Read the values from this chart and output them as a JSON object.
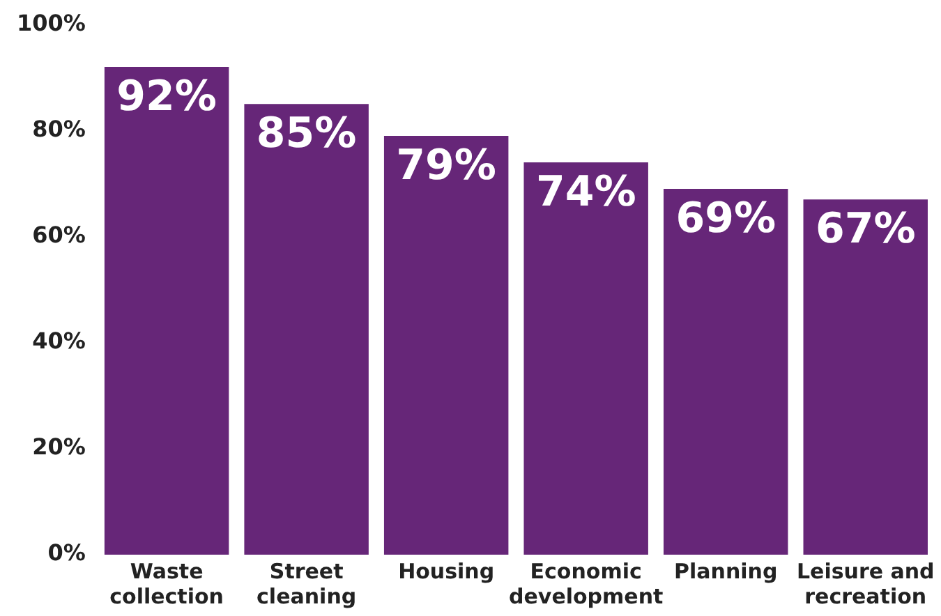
{
  "chart_data": {
    "type": "bar",
    "categories": [
      "Waste collection",
      "Street cleaning",
      "Housing",
      "Economic development",
      "Planning",
      "Leisure and recreation"
    ],
    "values": [
      92,
      85,
      79,
      74,
      69,
      67
    ],
    "color": "#662678",
    "ylim": [
      0,
      100
    ],
    "yticks": [
      {
        "value": 0,
        "label": "0%"
      },
      {
        "value": 20,
        "label": "20%"
      },
      {
        "value": 40,
        "label": "40%"
      },
      {
        "value": 60,
        "label": "60%"
      },
      {
        "value": 80,
        "label": "80%"
      },
      {
        "value": 100,
        "label": "100%"
      }
    ],
    "grid": false,
    "data_labels": true,
    "value_labels": [
      "92%",
      "85%",
      "79%",
      "74%",
      "69%",
      "67%"
    ]
  }
}
